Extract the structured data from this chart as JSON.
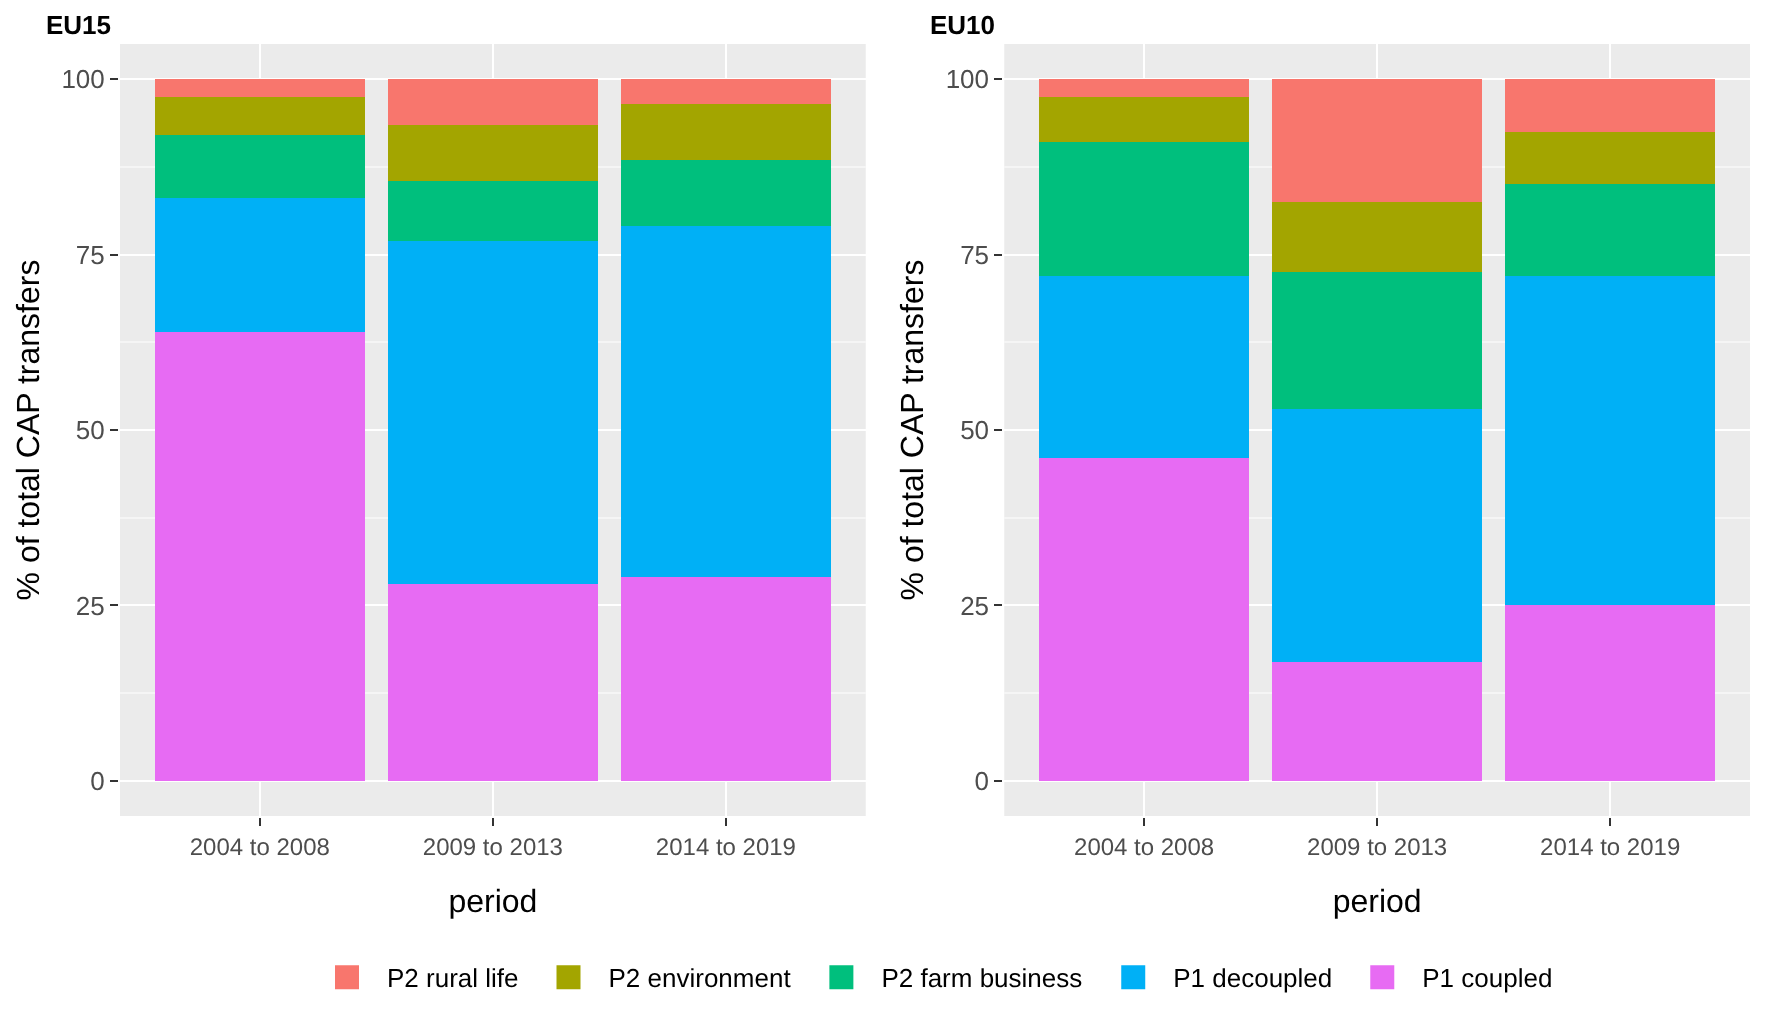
{
  "chart_data": [
    {
      "type": "bar",
      "stacked": true,
      "title": "EU15",
      "xlabel": "period",
      "ylabel": "% of total CAP transfers",
      "categories": [
        "2004 to 2008",
        "2009 to 2013",
        "2014 to 2019"
      ],
      "ylim": [
        -5,
        105
      ],
      "yticks": [
        0,
        25,
        50,
        75,
        100
      ],
      "grid": true,
      "legend": "bottom",
      "series": [
        {
          "name": "P1 coupled",
          "color": "#e76bf3",
          "values": [
            64,
            28,
            29
          ]
        },
        {
          "name": "P1 decoupled",
          "color": "#00b0f6",
          "values": [
            19,
            49,
            50
          ]
        },
        {
          "name": "P2 farm business",
          "color": "#00bf7d",
          "values": [
            9,
            8.5,
            9.5
          ]
        },
        {
          "name": "P2 environment",
          "color": "#a3a500",
          "values": [
            5.5,
            8,
            8
          ]
        },
        {
          "name": "P2 rural life",
          "color": "#f8766d",
          "values": [
            2.5,
            6.5,
            3.5
          ]
        }
      ]
    },
    {
      "type": "bar",
      "stacked": true,
      "title": "EU10",
      "xlabel": "period",
      "ylabel": "% of total CAP transfers",
      "categories": [
        "2004 to 2008",
        "2009 to 2013",
        "2014 to 2019"
      ],
      "ylim": [
        -5,
        105
      ],
      "yticks": [
        0,
        25,
        50,
        75,
        100
      ],
      "grid": true,
      "legend": "bottom",
      "series": [
        {
          "name": "P1 coupled",
          "color": "#e76bf3",
          "values": [
            46,
            17,
            25
          ]
        },
        {
          "name": "P1 decoupled",
          "color": "#00b0f6",
          "values": [
            26,
            36,
            47
          ]
        },
        {
          "name": "P2 farm business",
          "color": "#00bf7d",
          "values": [
            19,
            19.5,
            13
          ]
        },
        {
          "name": "P2 environment",
          "color": "#a3a500",
          "values": [
            6.5,
            10,
            7.5
          ]
        },
        {
          "name": "P2 rural life",
          "color": "#f8766d",
          "values": [
            2.5,
            17.5,
            7.5
          ]
        }
      ]
    }
  ]
}
